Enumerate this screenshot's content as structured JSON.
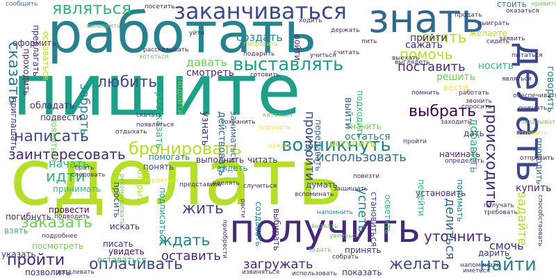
{
  "palette": {
    "c0": "#440154",
    "c1": "#482878",
    "c2": "#3e4989",
    "c3": "#31688e",
    "c4": "#26828e",
    "c5": "#1f9e89",
    "c6": "#35b779",
    "c7": "#6ece58",
    "c8": "#b5de2b",
    "c9": "#fde725"
  },
  "words": [
    {
      "text": "пишите",
      "color": "c5"
    },
    {
      "text": "сделать",
      "color": "c8"
    },
    {
      "text": "работать",
      "color": "c4"
    },
    {
      "text": "получить",
      "color": "c1"
    },
    {
      "text": "знать",
      "color": "c3"
    },
    {
      "text": "делать",
      "color": "c2"
    },
    {
      "text": "заканчиваться",
      "color": "c2"
    },
    {
      "text": "являться",
      "color": "c6"
    },
    {
      "text": "сказать",
      "color": "c4"
    },
    {
      "text": "выставлять",
      "color": "c5"
    },
    {
      "text": "любить",
      "color": "c2"
    },
    {
      "text": "давать",
      "color": "c7"
    },
    {
      "text": "снять",
      "color": "c8"
    },
    {
      "text": "помочь",
      "color": "c8"
    },
    {
      "text": "поставить",
      "color": "c1"
    },
    {
      "text": "говорить",
      "color": "c4"
    },
    {
      "text": "выбрать",
      "color": "c0"
    },
    {
      "text": "написать",
      "color": "c2"
    },
    {
      "text": "бронировать",
      "color": "c8"
    },
    {
      "text": "возникнуть",
      "color": "c4"
    },
    {
      "text": "заинтересовать",
      "color": "c1"
    },
    {
      "text": "использовать",
      "color": "c3"
    },
    {
      "text": "происходить",
      "color": "c1"
    },
    {
      "text": "добавить",
      "color": "c6"
    },
    {
      "text": "произойти",
      "color": "c2"
    },
    {
      "text": "идти",
      "color": "c6"
    },
    {
      "text": "начать",
      "color": "c6"
    },
    {
      "text": "жить",
      "color": "c2"
    },
    {
      "text": "заказать",
      "color": "c7"
    },
    {
      "text": "ждать",
      "color": "c4"
    },
    {
      "text": "оставить",
      "color": "c1"
    },
    {
      "text": "пройти",
      "color": "c1"
    },
    {
      "text": "оплачивать",
      "color": "c2"
    },
    {
      "text": "загружать",
      "color": "c1"
    },
    {
      "text": "желать",
      "color": "c2"
    },
    {
      "text": "найти",
      "color": "c4"
    },
    {
      "text": "уточнить",
      "color": "c1"
    },
    {
      "text": "смочь",
      "color": "c1"
    },
    {
      "text": "задайте",
      "color": "c8"
    },
    {
      "text": "забрать",
      "color": "c4"
    },
    {
      "text": "успеть",
      "color": "c4"
    },
    {
      "text": "делиться",
      "color": "c3"
    },
    {
      "text": "купить",
      "color": "c1"
    },
    {
      "text": "создать",
      "color": "c4"
    },
    {
      "text": "прийти",
      "color": "c1"
    },
    {
      "text": "сажать",
      "color": "c1"
    },
    {
      "text": "носить",
      "color": "c6"
    },
    {
      "text": "решить",
      "color": "c7"
    },
    {
      "text": "вести",
      "color": "c9"
    },
    {
      "text": "желаете",
      "color": "c8"
    },
    {
      "text": "стоить",
      "color": "c4"
    },
    {
      "text": "оформить",
      "color": "c1"
    },
    {
      "text": "проходить",
      "color": "c1"
    },
    {
      "text": "оставаться",
      "color": "c8"
    },
    {
      "text": "предлагать",
      "color": "c1"
    },
    {
      "text": "сообщить",
      "color": "c4"
    },
    {
      "text": "обладать",
      "color": "c1"
    },
    {
      "text": "подвести",
      "color": "c1"
    },
    {
      "text": "появиться",
      "color": "c7"
    },
    {
      "text": "приглашать",
      "color": "c1"
    },
    {
      "text": "рассказать",
      "color": "c6"
    },
    {
      "text": "смотреть",
      "color": "c1"
    },
    {
      "text": "узнать",
      "color": "c1"
    },
    {
      "text": "подойти",
      "color": "c7"
    },
    {
      "text": "действовать",
      "color": "c3"
    },
    {
      "text": "заниматься",
      "color": "c3"
    },
    {
      "text": "передавать",
      "color": "c3"
    },
    {
      "text": "вступить",
      "color": "c8"
    },
    {
      "text": "подходить",
      "color": "c6"
    },
    {
      "text": "выйти",
      "color": "c3"
    },
    {
      "text": "значить",
      "color": "c7"
    },
    {
      "text": "остаться",
      "color": "c4"
    },
    {
      "text": "дать",
      "color": "c1"
    },
    {
      "text": "начинать",
      "color": "c1"
    },
    {
      "text": "выполнить",
      "color": "c1"
    },
    {
      "text": "читать",
      "color": "c1"
    },
    {
      "text": "видеть",
      "color": "c5"
    },
    {
      "text": "понять",
      "color": "c2"
    },
    {
      "text": "помогать",
      "color": "c4"
    },
    {
      "text": "думать",
      "color": "c2"
    },
    {
      "text": "принимать",
      "color": "c6"
    },
    {
      "text": "провести",
      "color": "c0"
    },
    {
      "text": "открыть",
      "color": "c8"
    },
    {
      "text": "просить",
      "color": "c2"
    },
    {
      "text": "подписаться",
      "color": "c5"
    },
    {
      "text": "создавать",
      "color": "c4"
    },
    {
      "text": "выбирать",
      "color": "c1"
    },
    {
      "text": "становиться",
      "color": "c2"
    },
    {
      "text": "осветить",
      "color": "c6"
    },
    {
      "text": "установить",
      "color": "c1"
    },
    {
      "text": "перейти",
      "color": "c6"
    },
    {
      "text": "понимать",
      "color": "c4"
    },
    {
      "text": "взять",
      "color": "c6"
    },
    {
      "text": "искать",
      "color": "c1"
    },
    {
      "text": "писать",
      "color": "c1"
    },
    {
      "text": "увидеть",
      "color": "c0"
    },
    {
      "text": "посмотреть",
      "color": "c7"
    },
    {
      "text": "указать",
      "color": "c1"
    },
    {
      "text": "оставаться",
      "color": "c6"
    },
    {
      "text": "позволить",
      "color": "c1"
    },
    {
      "text": "принять",
      "color": "c1"
    },
    {
      "text": "показать",
      "color": "c1"
    },
    {
      "text": "дарить",
      "color": "c1"
    },
    {
      "text": "погибнуть",
      "color": "c1"
    },
    {
      "text": "уйти",
      "color": "c1"
    },
    {
      "text": "позволить",
      "color": "c7"
    },
    {
      "text": "хотеться",
      "color": "c7"
    },
    {
      "text": "держать",
      "color": "c1"
    },
    {
      "text": "пить",
      "color": "c1"
    },
    {
      "text": "считать",
      "color": "c1"
    },
    {
      "text": "подарить",
      "color": "c1"
    },
    {
      "text": "готовить",
      "color": "c1"
    },
    {
      "text": "помнить",
      "color": "c1"
    },
    {
      "text": "заходить",
      "color": "c1"
    },
    {
      "text": "проводить",
      "color": "c3"
    },
    {
      "text": "отправить",
      "color": "c1"
    },
    {
      "text": "получать",
      "color": "c1"
    },
    {
      "text": "пытаться",
      "color": "c1"
    },
    {
      "text": "очищать",
      "color": "c1"
    },
    {
      "text": "нравиться",
      "color": "c7"
    },
    {
      "text": "заявить",
      "color": "c1"
    },
    {
      "text": "продать",
      "color": "c1"
    },
    {
      "text": "выиграть",
      "color": "c1"
    },
    {
      "text": "выехать",
      "color": "c1"
    },
    {
      "text": "попросить",
      "color": "c8"
    },
    {
      "text": "ходить",
      "color": "c1"
    },
    {
      "text": "войти",
      "color": "c1"
    },
    {
      "text": "учиться",
      "color": "c1"
    },
    {
      "text": "представить",
      "color": "c1"
    },
    {
      "text": "случиться",
      "color": "c1"
    },
    {
      "text": "брать",
      "color": "c1"
    },
    {
      "text": "следовать",
      "color": "c1"
    },
    {
      "text": "защищать",
      "color": "c1"
    },
    {
      "text": "вспоминать",
      "color": "c1"
    },
    {
      "text": "собрать",
      "color": "c1"
    },
    {
      "text": "подводить",
      "color": "c1"
    },
    {
      "text": "извиняться",
      "color": "c1"
    },
    {
      "text": "продлевать",
      "color": "c1"
    },
    {
      "text": "использовать",
      "color": "c1"
    },
    {
      "text": "напоминать",
      "color": "c1"
    },
    {
      "text": "напомнить",
      "color": "c4"
    },
    {
      "text": "требовать",
      "color": "c1"
    },
    {
      "text": "выглядеть",
      "color": "c1"
    },
    {
      "text": "приобрести",
      "color": "c1"
    },
    {
      "text": "спросить",
      "color": "c1"
    },
    {
      "text": "скачать",
      "color": "c1"
    },
    {
      "text": "сохранить",
      "color": "c1"
    },
    {
      "text": "отдыхать",
      "color": "c1"
    },
    {
      "text": "появляться",
      "color": "c1"
    },
    {
      "text": "работать",
      "color": "c1"
    },
    {
      "text": "повезти",
      "color": "c1"
    },
    {
      "text": "обеспечивать",
      "color": "c1"
    },
    {
      "text": "способствовать",
      "color": "c1"
    },
    {
      "text": "уделять",
      "color": "c1"
    },
    {
      "text": "являться",
      "color": "c1"
    },
    {
      "text": "иметься",
      "color": "c1"
    },
    {
      "text": "звонить",
      "color": "c1"
    },
    {
      "text": "посетить",
      "color": "c1"
    },
    {
      "text": "рассказывать",
      "color": "c1"
    },
    {
      "text": "сидеть",
      "color": "c1"
    },
    {
      "text": "оказаться",
      "color": "c1"
    },
    {
      "text": "определить",
      "color": "c1"
    },
    {
      "text": "подробнее",
      "color": "c1"
    },
    {
      "text": "пройти",
      "color": "c1"
    },
    {
      "text": "расти",
      "color": "c1"
    },
    {
      "text": "рекомендовать",
      "color": "c7"
    },
    {
      "text": "кататься",
      "color": "c7"
    },
    {
      "text": "вызвать",
      "color": "c7"
    },
    {
      "text": "увлечься",
      "color": "c7"
    },
    {
      "text": "задать",
      "color": "c7"
    },
    {
      "text": "заказывать",
      "color": "c7"
    },
    {
      "text": "уточните",
      "color": "c9"
    },
    {
      "text": "гордиться",
      "color": "c9"
    },
    {
      "text": "подумать",
      "color": "c9"
    },
    {
      "text": "нужно",
      "color": "c9"
    }
  ]
}
